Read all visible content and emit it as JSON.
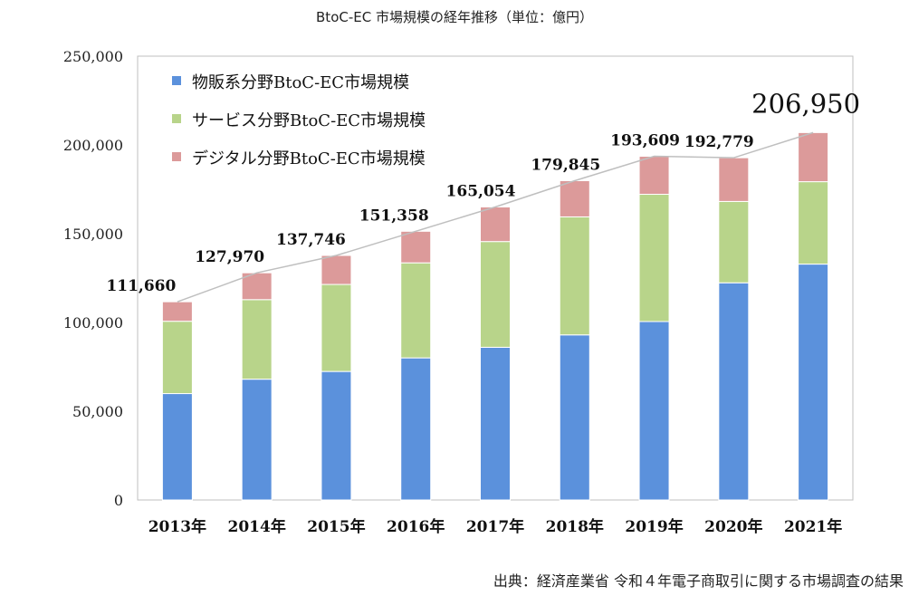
{
  "title": "BtoC-EC 市場規模の経年推移（単位：億円）",
  "source": "出典：経済産業省  令和４年電子商取引に関する市場調査の結果",
  "colors": {
    "goods": "#5b91dc",
    "services": "#b8d48a",
    "digital": "#dc9a9a",
    "line": "#bfbfbf"
  },
  "chart_data": {
    "type": "bar",
    "stacked": true,
    "title": "BtoC-EC 市場規模の経年推移（単位：億円）",
    "categories": [
      "2013年",
      "2014年",
      "2015年",
      "2016年",
      "2017年",
      "2018年",
      "2019年",
      "2020年",
      "2021年"
    ],
    "series": [
      {
        "name": "物販系分野BtoC-EC市場規模",
        "values": [
          59931,
          68042,
          72398,
          80043,
          86008,
          92992,
          100515,
          122333,
          132865
        ]
      },
      {
        "name": "サービス分野BtoC-EC市場規模",
        "values": [
          40746,
          44816,
          49014,
          53532,
          59568,
          66471,
          71672,
          45832,
          46424
        ]
      },
      {
        "name": "デジタル分野BtoC-EC市場規模",
        "values": [
          10983,
          15112,
          16334,
          17783,
          19478,
          20382,
          21422,
          24614,
          27661
        ]
      }
    ],
    "totals": [
      111660,
      127970,
      137746,
      151358,
      165054,
      179845,
      193609,
      192779,
      206950
    ],
    "total_labels": [
      "111,660",
      "127,970",
      "137,746",
      "151,358",
      "165,054",
      "179,845",
      "193,609",
      "192,779",
      "206,950"
    ],
    "yticks": [
      0,
      50000,
      100000,
      150000,
      200000,
      250000
    ],
    "ytick_labels": [
      "0",
      "50,000",
      "100,000",
      "150,000",
      "200,000",
      "250,000"
    ],
    "ylim": [
      0,
      250000
    ],
    "legend_position": "top-left",
    "grid": false
  }
}
